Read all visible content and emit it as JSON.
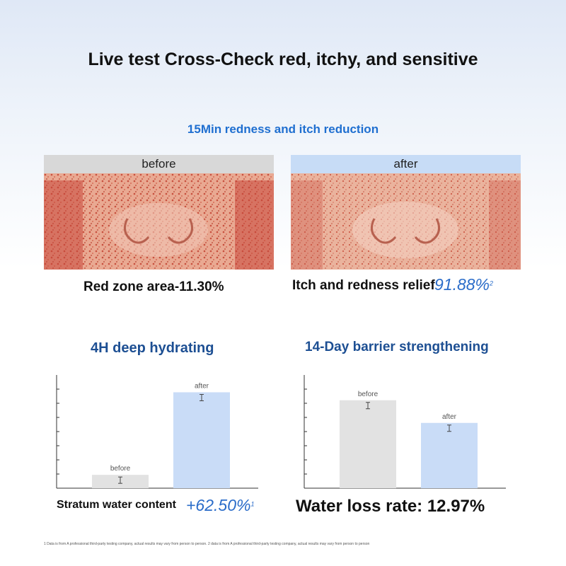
{
  "title": "Live test Cross-Check red, itchy, and sensitive",
  "subtitle": "15Min redness and itch reduction",
  "photos": {
    "before_label": "before",
    "after_label": "after"
  },
  "stats": {
    "red_zone": "Red zone area-11.30%",
    "itch_label": "Itch and redness relief",
    "itch_value": "91.88%",
    "itch_sup": "2"
  },
  "hydrating": {
    "title": "4H deep hydrating",
    "before_label": "before",
    "after_label": "after",
    "stat_label": "Stratum water content",
    "stat_value": "+62.50%",
    "stat_sup": "1",
    "chart_data": {
      "type": "bar",
      "categories": [
        "before",
        "after"
      ],
      "values": [
        10,
        72
      ],
      "ylim": [
        0,
        85
      ],
      "colors": [
        "#e2e2e2",
        "#c9dcf7"
      ]
    }
  },
  "barrier": {
    "title": "14-Day barrier strengthening",
    "before_label": "before",
    "after_label": "after",
    "stat": "Water loss rate: 12.97%",
    "chart_data": {
      "type": "bar",
      "categories": [
        "before",
        "after"
      ],
      "values": [
        66,
        49
      ],
      "ylim": [
        0,
        85
      ],
      "colors": [
        "#e2e2e2",
        "#c9dcf7"
      ]
    }
  },
  "footnote": "1 Data is from A professional third-party testing company, actual results may vary from person to person. 2 data is from A professional third-party testing company, actual results may vary from person to person"
}
